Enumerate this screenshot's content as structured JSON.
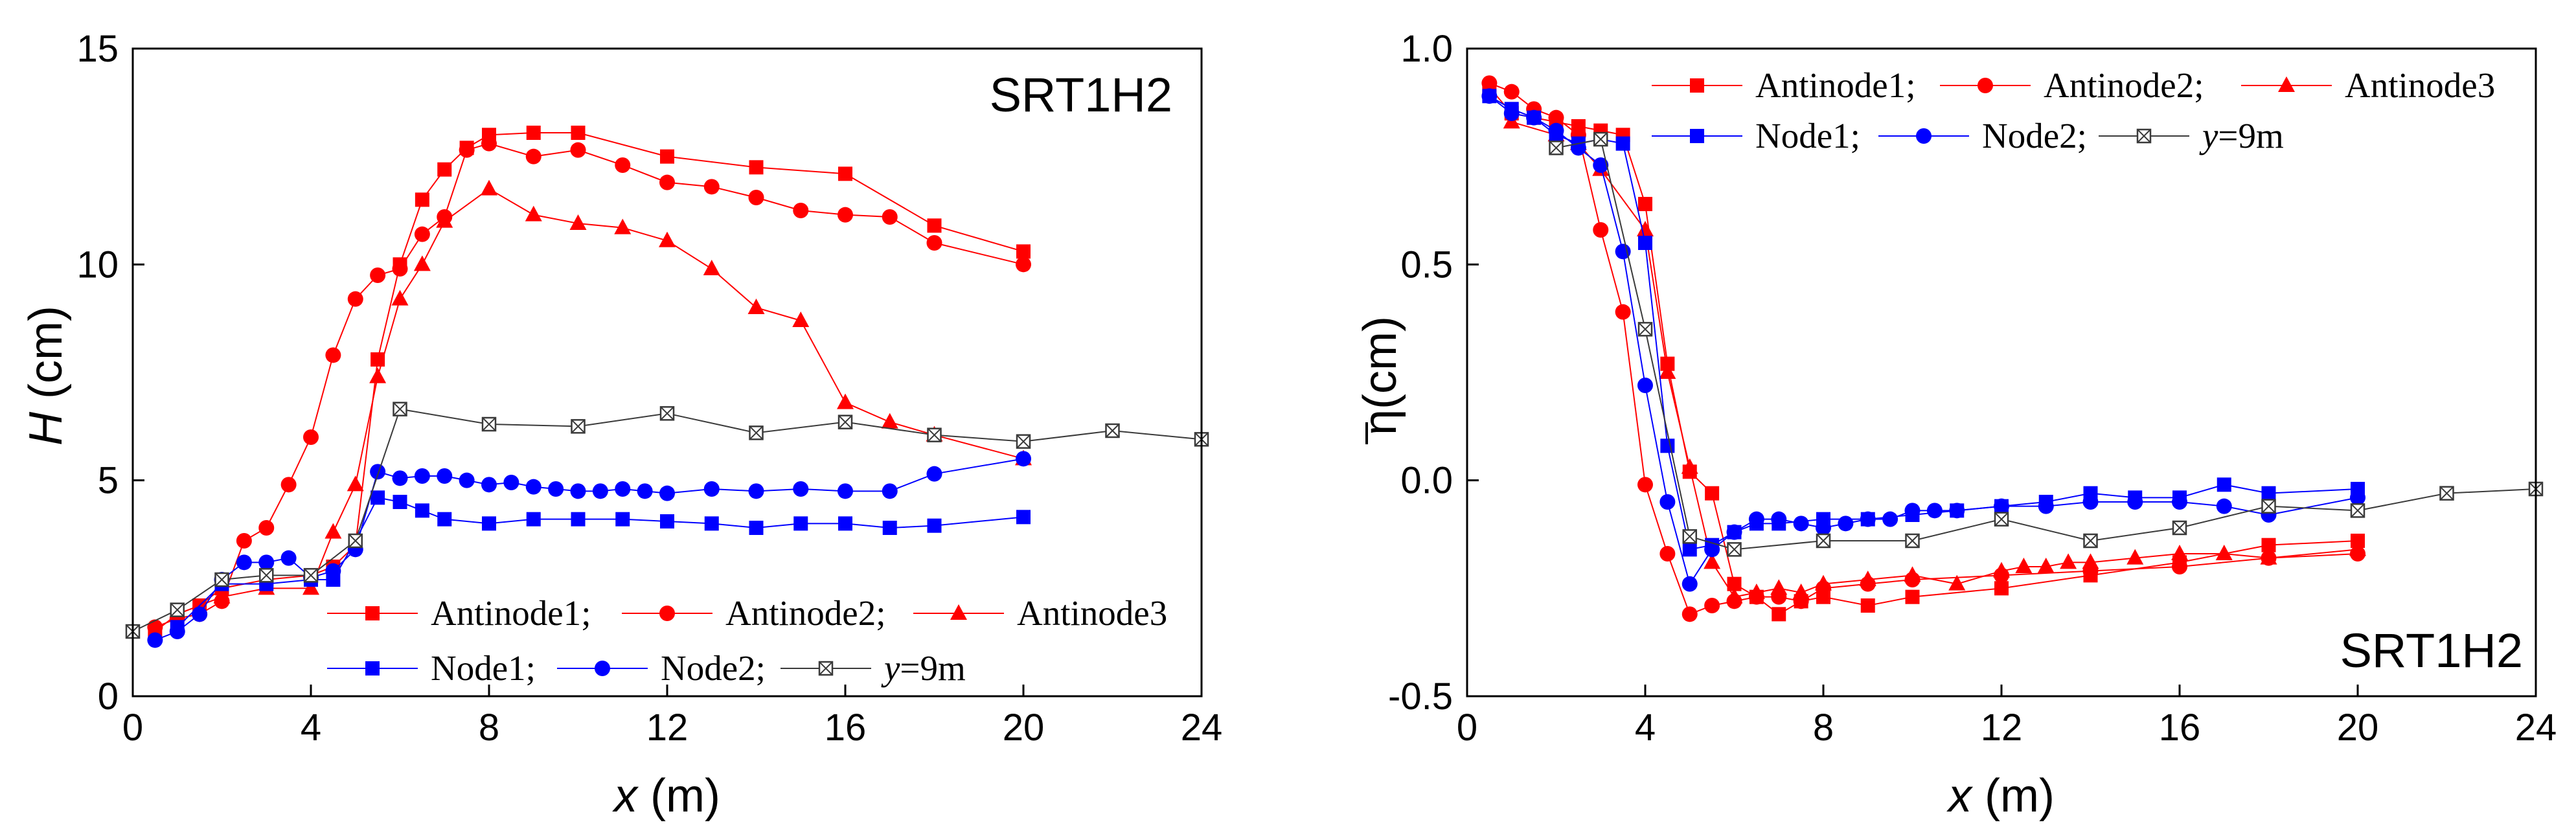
{
  "colors": {
    "red": "#ff0000",
    "blue": "#0000ff",
    "gray": "#3a3a3a"
  },
  "chart_data": [
    {
      "type": "line",
      "title": "SRT1H2",
      "xlabel_symbol": "x",
      "xlabel_unit": " (m)",
      "ylabel_symbol": "H",
      "ylabel_unit": " (cm)",
      "xlim": [
        0,
        24
      ],
      "ylim": [
        0,
        15
      ],
      "xticks": [
        0,
        4,
        8,
        12,
        16,
        20,
        24
      ],
      "yticks": [
        0,
        5,
        10,
        15
      ],
      "xtick_labels": [
        "0",
        "4",
        "8",
        "12",
        "16",
        "20",
        "24"
      ],
      "ytick_labels": [
        "0",
        "5",
        "10",
        "15"
      ],
      "legend_position": "bottom-center",
      "series": [
        {
          "name": "Antinode1;",
          "color": "red",
          "marker": "square",
          "x": [
            0.5,
            1,
            1.5,
            2,
            3,
            4,
            4.5,
            5,
            5.5,
            6,
            6.5,
            7,
            7.5,
            8,
            9,
            10,
            12,
            14,
            16,
            18,
            20
          ],
          "y": [
            1.5,
            1.9,
            2.1,
            2.5,
            2.7,
            2.8,
            3.0,
            3.5,
            7.8,
            10.0,
            11.5,
            12.2,
            12.7,
            13.0,
            13.05,
            13.05,
            12.5,
            12.25,
            12.1,
            10.9,
            10.3
          ]
        },
        {
          "name": "Antinode2;",
          "color": "red",
          "marker": "circle",
          "x": [
            0.5,
            1,
            1.5,
            2,
            2.5,
            3,
            3.5,
            4,
            4.5,
            5,
            5.5,
            6,
            6.5,
            7,
            7.5,
            8,
            9,
            10,
            11,
            12,
            13,
            14,
            15,
            16,
            17,
            18,
            20
          ],
          "y": [
            1.6,
            1.8,
            1.9,
            2.2,
            3.6,
            3.9,
            4.9,
            6.0,
            7.9,
            9.2,
            9.75,
            9.9,
            10.7,
            11.1,
            12.65,
            12.8,
            12.5,
            12.65,
            12.3,
            11.9,
            11.8,
            11.55,
            11.25,
            11.15,
            11.1,
            10.5,
            10.0
          ]
        },
        {
          "name": "Antinode3",
          "color": "red",
          "marker": "triangle",
          "x": [
            1,
            2,
            3,
            4,
            4.5,
            5,
            5.5,
            6,
            6.5,
            7,
            8,
            9,
            10,
            11,
            12,
            13,
            14,
            15,
            16,
            17,
            18,
            20
          ],
          "y": [
            1.9,
            2.3,
            2.5,
            2.5,
            3.8,
            4.9,
            7.4,
            9.2,
            10.0,
            11.0,
            11.75,
            11.15,
            10.95,
            10.85,
            10.55,
            9.9,
            9.0,
            8.7,
            6.8,
            6.35,
            6.05,
            5.5
          ]
        },
        {
          "name": "Node1;",
          "color": "blue",
          "marker": "square",
          "x": [
            1,
            2,
            3,
            4,
            4.5,
            5,
            5.5,
            6,
            6.5,
            7,
            8,
            9,
            10,
            11,
            12,
            13,
            14,
            15,
            16,
            17,
            18,
            20
          ],
          "y": [
            1.6,
            2.6,
            2.6,
            2.7,
            2.7,
            3.6,
            4.6,
            4.5,
            4.3,
            4.1,
            4.0,
            4.1,
            4.1,
            4.1,
            4.05,
            4.0,
            3.9,
            4.0,
            4.0,
            3.9,
            3.95,
            4.15
          ]
        },
        {
          "name": "Node2;",
          "color": "blue",
          "marker": "circle",
          "x": [
            0.5,
            1,
            1.5,
            2,
            2.5,
            3,
            3.5,
            4,
            4.5,
            5,
            5.5,
            6,
            6.5,
            7,
            7.5,
            8,
            8.5,
            9,
            9.5,
            10,
            10.5,
            11,
            11.5,
            12,
            13,
            14,
            15,
            16,
            17,
            18,
            20
          ],
          "y": [
            1.3,
            1.5,
            1.9,
            2.7,
            3.1,
            3.1,
            3.2,
            2.75,
            2.9,
            3.4,
            5.2,
            5.05,
            5.1,
            5.1,
            5.0,
            4.9,
            4.95,
            4.85,
            4.8,
            4.75,
            4.75,
            4.8,
            4.75,
            4.7,
            4.8,
            4.75,
            4.8,
            4.75,
            4.75,
            5.15,
            5.5
          ]
        },
        {
          "name": "y=9m",
          "name_italic": "y",
          "name_rest": "=9m",
          "color": "gray",
          "marker": "boxx",
          "x": [
            0,
            1,
            2,
            3,
            4,
            5,
            6,
            8,
            10,
            12,
            14,
            16,
            18,
            20,
            22,
            24
          ],
          "y": [
            1.5,
            2.0,
            2.7,
            2.8,
            2.8,
            3.6,
            6.65,
            6.3,
            6.25,
            6.55,
            6.1,
            6.35,
            6.05,
            5.9,
            6.15,
            5.95
          ]
        }
      ]
    },
    {
      "type": "line",
      "title": "SRT1H2",
      "xlabel_symbol": "x",
      "xlabel_unit": " (m)",
      "ylabel_symbol": "η",
      "ylabel_unit": "(cm)",
      "xlim": [
        0,
        24
      ],
      "ylim": [
        -0.5,
        1.0
      ],
      "xticks": [
        0,
        4,
        8,
        12,
        16,
        20,
        24
      ],
      "yticks": [
        -0.5,
        0.0,
        0.5,
        1.0
      ],
      "xtick_labels": [
        "0",
        "4",
        "8",
        "12",
        "16",
        "20",
        "24"
      ],
      "ytick_labels": [
        "-0.5",
        "0.0",
        "0.5",
        "1.0"
      ],
      "legend_position": "top-right",
      "series": [
        {
          "name": "Antinode1;",
          "color": "red",
          "marker": "square",
          "x": [
            0.5,
            1,
            1.5,
            2,
            2.5,
            3,
            3.5,
            4,
            4.5,
            5,
            5.5,
            6,
            6.5,
            7,
            7.5,
            8,
            9,
            10,
            12,
            14,
            16,
            18,
            20
          ],
          "y": [
            0.91,
            0.85,
            0.84,
            0.83,
            0.82,
            0.81,
            0.8,
            0.64,
            0.27,
            0.02,
            -0.03,
            -0.24,
            -0.27,
            -0.31,
            -0.28,
            -0.27,
            -0.29,
            -0.27,
            -0.25,
            -0.22,
            -0.19,
            -0.15,
            -0.14
          ]
        },
        {
          "name": "Antinode2;",
          "color": "red",
          "marker": "circle",
          "x": [
            0.5,
            1,
            1.5,
            2,
            2.5,
            3,
            3.5,
            4,
            4.5,
            5,
            5.5,
            6,
            6.5,
            7,
            7.5,
            8,
            9,
            10,
            12,
            14,
            16,
            18,
            20
          ],
          "y": [
            0.92,
            0.9,
            0.86,
            0.84,
            0.8,
            0.58,
            0.39,
            -0.01,
            -0.17,
            -0.31,
            -0.29,
            -0.28,
            -0.27,
            -0.27,
            -0.28,
            -0.25,
            -0.24,
            -0.23,
            -0.22,
            -0.21,
            -0.2,
            -0.18,
            -0.17
          ]
        },
        {
          "name": "Antinode3",
          "color": "red",
          "marker": "triangle",
          "x": [
            1,
            2,
            2.5,
            3,
            4,
            4.5,
            5,
            5.5,
            6,
            6.5,
            7,
            7.5,
            8,
            9,
            10,
            11,
            12,
            12.5,
            13,
            13.5,
            14,
            15,
            16,
            17,
            18,
            20
          ],
          "y": [
            0.83,
            0.8,
            0.78,
            0.72,
            0.58,
            0.25,
            0.03,
            -0.19,
            -0.27,
            -0.26,
            -0.25,
            -0.26,
            -0.24,
            -0.23,
            -0.22,
            -0.24,
            -0.21,
            -0.2,
            -0.2,
            -0.19,
            -0.19,
            -0.18,
            -0.17,
            -0.17,
            -0.18,
            -0.16
          ]
        },
        {
          "name": "Node1;",
          "color": "blue",
          "marker": "square",
          "x": [
            0.5,
            1,
            1.5,
            2,
            2.5,
            3,
            3.5,
            4,
            4.5,
            5,
            5.5,
            6,
            6.5,
            7,
            8,
            9,
            10,
            11,
            12,
            13,
            14,
            15,
            16,
            17,
            18,
            20
          ],
          "y": [
            0.89,
            0.86,
            0.84,
            0.8,
            0.78,
            0.79,
            0.78,
            0.55,
            0.08,
            -0.16,
            -0.15,
            -0.12,
            -0.1,
            -0.1,
            -0.09,
            -0.09,
            -0.08,
            -0.07,
            -0.06,
            -0.05,
            -0.03,
            -0.04,
            -0.04,
            -0.01,
            -0.03,
            -0.02
          ]
        },
        {
          "name": "Node2;",
          "color": "blue",
          "marker": "circle",
          "x": [
            0.5,
            1,
            1.5,
            2,
            2.5,
            3,
            3.5,
            4,
            4.5,
            5,
            5.5,
            6,
            6.5,
            7,
            7.5,
            8,
            8.5,
            9,
            9.5,
            10,
            10.5,
            11,
            12,
            13,
            14,
            15,
            16,
            17,
            18,
            20
          ],
          "y": [
            0.89,
            0.85,
            0.84,
            0.81,
            0.77,
            0.73,
            0.53,
            0.22,
            -0.05,
            -0.24,
            -0.16,
            -0.12,
            -0.09,
            -0.09,
            -0.1,
            -0.11,
            -0.1,
            -0.09,
            -0.09,
            -0.07,
            -0.07,
            -0.07,
            -0.06,
            -0.06,
            -0.05,
            -0.05,
            -0.05,
            -0.06,
            -0.08,
            -0.04
          ]
        },
        {
          "name": "y=9m",
          "name_italic": "y",
          "name_rest": "=9m",
          "color": "gray",
          "marker": "boxx",
          "x": [
            2,
            3,
            4,
            5,
            6,
            8,
            10,
            12,
            14,
            16,
            18,
            20,
            22,
            24
          ],
          "y": [
            0.77,
            0.79,
            0.35,
            -0.13,
            -0.16,
            -0.14,
            -0.14,
            -0.09,
            -0.14,
            -0.11,
            -0.06,
            -0.07,
            -0.03,
            -0.02
          ]
        }
      ]
    }
  ]
}
